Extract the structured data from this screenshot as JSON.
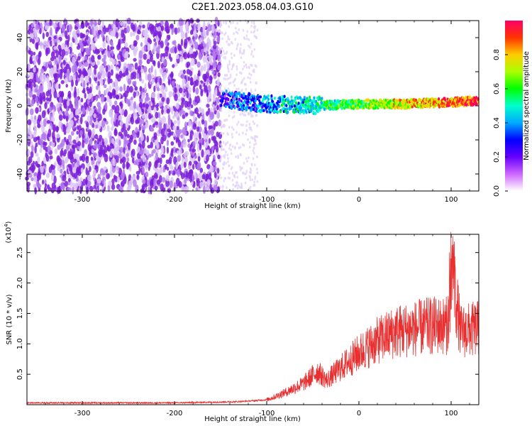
{
  "title": "C2E1.2023.058.04.03.G10",
  "colors": {
    "snr_line": "#e83030",
    "spectrogram_low": "#7b1fd8",
    "colormap": [
      "#ffffff",
      "#cc66ff",
      "#6600ff",
      "#0000ff",
      "#00aaff",
      "#00ffcc",
      "#00ff00",
      "#aaff00",
      "#ffcc00",
      "#ff3300",
      "#ff0066"
    ]
  },
  "chart_data": [
    {
      "type": "heatmap",
      "xlabel": "Height of straight line (km)",
      "ylabel": "Frequency (Hz)",
      "xlim": [
        -360,
        130
      ],
      "ylim": [
        -50,
        50
      ],
      "xticks": [
        -300,
        -200,
        -100,
        0,
        100
      ],
      "yticks": [
        -40,
        -20,
        0,
        20,
        40
      ],
      "colorbar": {
        "label": "Normalized spectral amplitude",
        "range": [
          0,
          1
        ],
        "ticks": [
          "0.0",
          "0.2",
          "0.4",
          "0.6",
          "0.8"
        ]
      },
      "signal_band": {
        "description_free": true,
        "center_frequency_hz": [
          [
            -150,
            4
          ],
          [
            -100,
            1
          ],
          [
            -50,
            0
          ],
          [
            0,
            1
          ],
          [
            50,
            1
          ],
          [
            100,
            2
          ],
          [
            130,
            3
          ]
        ],
        "noise_region_x": [
          -360,
          -150
        ]
      }
    },
    {
      "type": "line",
      "xlabel": "Height of straight line (km)",
      "ylabel": "SNR (10 * v/v)",
      "yscale_label": "(x10",
      "yscale_exp": "4",
      "yscale_close": ")",
      "xlim": [
        -360,
        130
      ],
      "ylim": [
        0,
        28000
      ],
      "xticks": [
        -300,
        -200,
        -100,
        0,
        100
      ],
      "yticks": [
        "0.5",
        "1.0",
        "1.5",
        "2.0",
        "2.5"
      ],
      "ytick_values": [
        5000,
        10000,
        15000,
        20000,
        25000
      ],
      "envelope": [
        [
          -360,
          300
        ],
        [
          -200,
          300
        ],
        [
          -130,
          500
        ],
        [
          -100,
          800
        ],
        [
          -80,
          2000
        ],
        [
          -60,
          3500
        ],
        [
          -45,
          5500
        ],
        [
          -35,
          4000
        ],
        [
          -20,
          6000
        ],
        [
          0,
          8500
        ],
        [
          20,
          10500
        ],
        [
          40,
          12000
        ],
        [
          60,
          12500
        ],
        [
          80,
          13000
        ],
        [
          95,
          13000
        ],
        [
          100,
          16000
        ],
        [
          103,
          20000
        ],
        [
          110,
          12000
        ],
        [
          130,
          12500
        ]
      ]
    }
  ]
}
